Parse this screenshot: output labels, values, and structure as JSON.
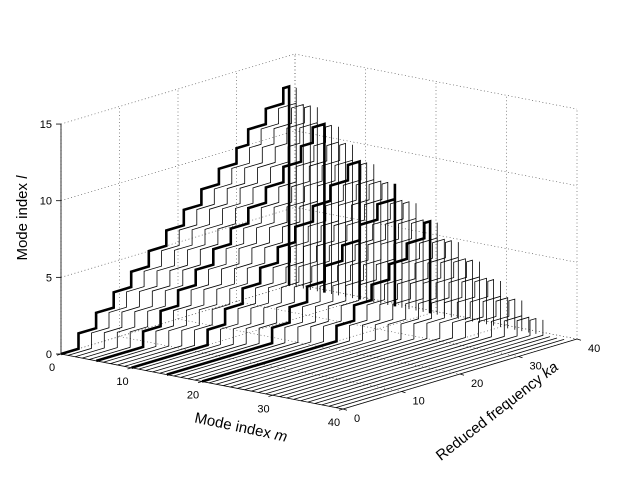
{
  "chart_data": {
    "type": "line",
    "view": "3d-waterfall",
    "grid": true,
    "axes": {
      "x": {
        "title_prefix": "Mode index ",
        "title_variable": "m",
        "range": [
          0,
          40
        ],
        "ticks": [
          "0",
          "10",
          "20",
          "30",
          "40"
        ]
      },
      "y": {
        "title_prefix": "Reduced frequency ",
        "title_variable": "ka",
        "range": [
          0,
          40
        ],
        "ticks": [
          "0",
          "10",
          "20",
          "30",
          "40"
        ]
      },
      "z": {
        "title_prefix": "Mode index ",
        "title_variable": "l",
        "range": [
          0,
          15
        ],
        "ticks": [
          "0",
          "5",
          "10",
          "15"
        ]
      }
    },
    "series_rule": "For each mode index m (0-39), the trace gives the number of cut-on radial modes l at reduced frequency ka; the count rises by one at each cut-on frequency ka = 3 + m + 2.9*l. Traces at m = 0, 5, 10, 15 and 20 are drawn bold.",
    "cutoff_model": {
      "base": 3,
      "per_m": 1,
      "per_l": 2.9
    },
    "m_values": {
      "start": 0,
      "end": 39,
      "step": 1
    },
    "ka_range": [
      0,
      39
    ],
    "highlighted_m": [
      0,
      5,
      10,
      15,
      20
    ],
    "line_color": "#000000"
  }
}
